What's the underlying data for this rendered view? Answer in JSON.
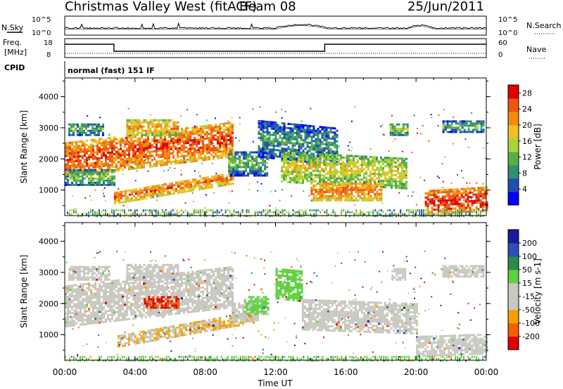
{
  "header": {
    "title": "Christmas Valley West (fitACF)",
    "beam": "Beam 08",
    "date": "25/Jun/2011"
  },
  "summary": {
    "nsky_label": "N.Sky",
    "nsearch_label": "N.Search",
    "freq_label_line1": "Freq.",
    "freq_label_line2": "[MHz]",
    "nave_label": "Nave",
    "cpid_label": "CPID",
    "cpid_text": "normal (fast) 151 IF",
    "noise_ticks_left": [
      "10^5",
      "10^0"
    ],
    "noise_ticks_right": [
      "10^5",
      "10^0"
    ],
    "freq_ticks": [
      "18",
      "8"
    ],
    "nave_ticks": [
      "60",
      "0"
    ]
  },
  "colors": {
    "power_scale": [
      "#0000ff",
      "#1f4fb0",
      "#2f8f6f",
      "#55b04a",
      "#a8d43a",
      "#f0c020",
      "#f08c10",
      "#ee5510",
      "#e00000"
    ],
    "velocity_scale": [
      "#1a1aa0",
      "#2f4fb8",
      "#2e8a4a",
      "#5fd040",
      "#c8c8c0",
      "#c8c8c0",
      "#f5a000",
      "#f06000",
      "#e00000"
    ]
  },
  "chart_data": [
    {
      "type": "heatmap",
      "name": "power",
      "xlabel": "",
      "ylabel": "Slant Range [km]",
      "x_range_hours": [
        0,
        24
      ],
      "ylim_km": [
        180,
        4600
      ],
      "yticks": [
        "1000",
        "2000",
        "3000",
        "4000"
      ],
      "colorbar_label": "Power [dB]",
      "colorbar_ticks": [
        "4",
        "8",
        "12",
        "16",
        "20",
        "24",
        "28"
      ],
      "colorbar_range": [
        0,
        30
      ],
      "regions": [
        {
          "t0": 0.0,
          "t1": 9.6,
          "r0": 1450,
          "r1": 2600,
          "level": 26,
          "slope": 70
        },
        {
          "t0": 2.8,
          "t1": 9.6,
          "r0": 600,
          "r1": 1000,
          "level": 24,
          "slope": 95
        },
        {
          "t0": 0.0,
          "t1": 2.8,
          "r0": 1200,
          "r1": 1700,
          "level": 14,
          "slope": 0
        },
        {
          "t0": 0.2,
          "t1": 2.2,
          "r0": 2800,
          "r1": 3200,
          "level": 12,
          "slope": 0
        },
        {
          "t0": 3.5,
          "t1": 6.5,
          "r0": 2800,
          "r1": 3300,
          "level": 22,
          "slope": 0
        },
        {
          "t0": 9.3,
          "t1": 11.5,
          "r0": 1500,
          "r1": 2300,
          "level": 12,
          "slope": 0
        },
        {
          "t0": 11.0,
          "t1": 15.5,
          "r0": 2100,
          "r1": 3300,
          "level": 10,
          "slope": -55
        },
        {
          "t0": 12.3,
          "t1": 19.5,
          "r0": 1300,
          "r1": 2300,
          "level": 18,
          "slope": -30
        },
        {
          "t0": 14.0,
          "t1": 18.0,
          "r0": 700,
          "r1": 1300,
          "level": 24,
          "slope": 0
        },
        {
          "t0": 18.5,
          "t1": 19.5,
          "r0": 2800,
          "r1": 3200,
          "level": 14,
          "slope": 0
        },
        {
          "t0": 20.5,
          "t1": 24.0,
          "r0": 250,
          "r1": 1000,
          "level": 28,
          "slope": 35
        },
        {
          "t0": 21.5,
          "t1": 23.8,
          "r0": 2900,
          "r1": 3250,
          "level": 12,
          "slope": 0
        }
      ],
      "ground_band_km": [
        200,
        400
      ]
    },
    {
      "type": "heatmap",
      "name": "velocity",
      "xlabel": "Time UT",
      "ylabel": "Slant Range [km]",
      "x_range_hours": [
        0,
        24
      ],
      "xticks": [
        "00:00",
        "04:00",
        "08:00",
        "12:00",
        "16:00",
        "20:00",
        "00:00"
      ],
      "ylim_km": [
        180,
        4600
      ],
      "yticks": [
        "1000",
        "2000",
        "3000",
        "4000"
      ],
      "colorbar_label": "Velocity [m s-1]",
      "colorbar_ticks": [
        "200",
        "100",
        "50",
        "15",
        "-15",
        "-50",
        "-100",
        "-200"
      ],
      "colorbar_range": [
        -250,
        250
      ],
      "regions": [
        {
          "t0": 0.0,
          "t1": 9.5,
          "r0": 1300,
          "r1": 2600,
          "value": 0,
          "slope": 65
        },
        {
          "t0": 0.2,
          "t1": 2.5,
          "r0": 2800,
          "r1": 3250,
          "value": 0,
          "slope": 0
        },
        {
          "t0": 3.5,
          "t1": 6.5,
          "r0": 2800,
          "r1": 3300,
          "value": 0,
          "slope": 0
        },
        {
          "t0": 4.5,
          "t1": 6.5,
          "r0": 1900,
          "r1": 2300,
          "value": -200,
          "slope": 0
        },
        {
          "t0": 3.0,
          "t1": 10.8,
          "r0": 650,
          "r1": 1050,
          "value": -80,
          "slope": 100
        },
        {
          "t0": 9.5,
          "t1": 11.0,
          "r0": 1500,
          "r1": 2100,
          "value": -40,
          "slope": 0
        },
        {
          "t0": 10.2,
          "t1": 11.6,
          "r0": 1700,
          "r1": 2300,
          "value": 40,
          "slope": 0
        },
        {
          "t0": 12.0,
          "t1": 13.5,
          "r0": 2200,
          "r1": 3200,
          "value": 45,
          "slope": -60
        },
        {
          "t0": 13.5,
          "t1": 20.0,
          "r0": 1200,
          "r1": 2200,
          "value": 0,
          "slope": -20
        },
        {
          "t0": 18.6,
          "t1": 19.4,
          "r0": 2800,
          "r1": 3200,
          "value": 0,
          "slope": 0
        },
        {
          "t0": 20.0,
          "t1": 24.0,
          "r0": 350,
          "r1": 1000,
          "value": 0,
          "slope": 20
        },
        {
          "t0": 21.5,
          "t1": 23.8,
          "r0": 2900,
          "r1": 3250,
          "value": 0,
          "slope": 0
        }
      ],
      "ground_band_km": [
        200,
        380
      ]
    }
  ]
}
